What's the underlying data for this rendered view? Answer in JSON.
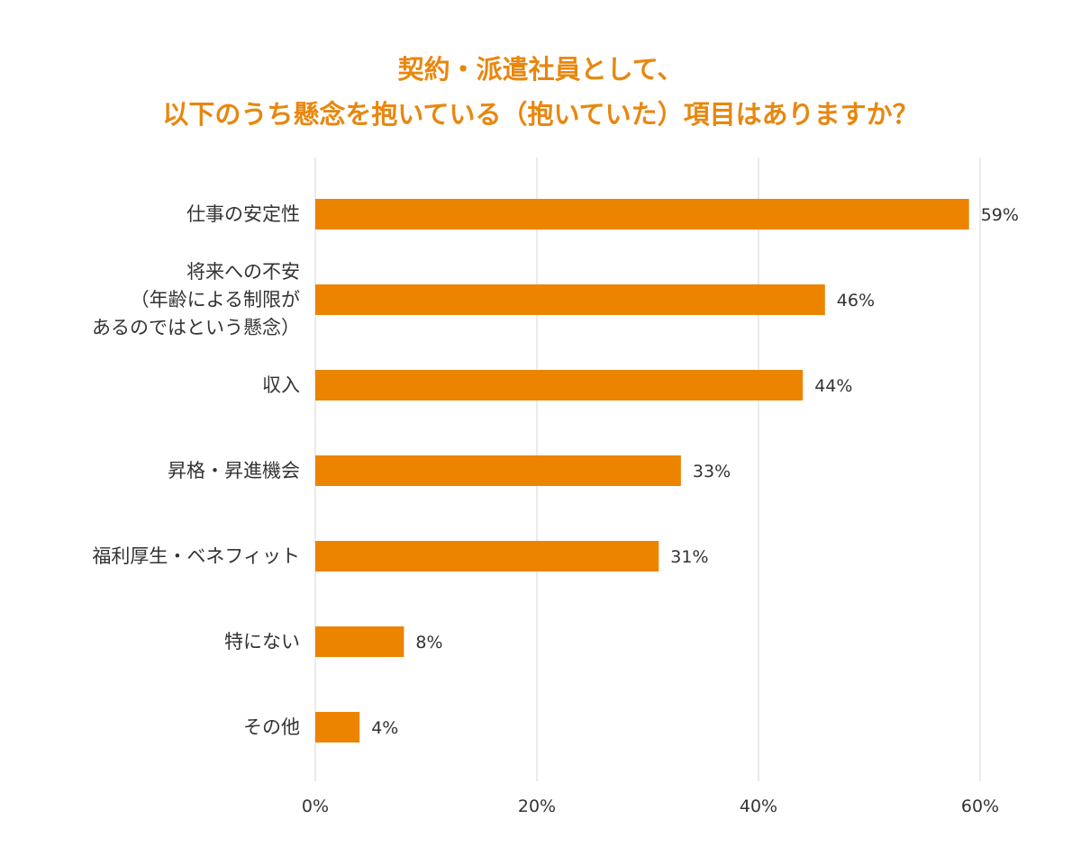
{
  "chart_data": {
    "type": "bar",
    "orientation": "horizontal",
    "title_lines": [
      "契約・派遣社員として、",
      "以下のうち懸念を抱いている（抱いていた）項目はありますか？"
    ],
    "categories": [
      [
        "仕事の安定性"
      ],
      [
        "将来への不安",
        "（年齢による制限が",
        "あるのではという懸念）"
      ],
      [
        "収入"
      ],
      [
        "昇格・昇進機会"
      ],
      [
        "福利厚生・ベネフィット"
      ],
      [
        "特にない"
      ],
      [
        "その他"
      ]
    ],
    "values": [
      59,
      46,
      44,
      33,
      31,
      8,
      4
    ],
    "value_labels": [
      "59%",
      "46%",
      "44%",
      "33%",
      "31%",
      "8%",
      "4%"
    ],
    "x_ticks": [
      "0%",
      "20%",
      "40%",
      "60%"
    ],
    "xlim": [
      0,
      60
    ],
    "grid": "vertical",
    "bar_color": "#ec8400",
    "title_color": "#e8870f"
  }
}
